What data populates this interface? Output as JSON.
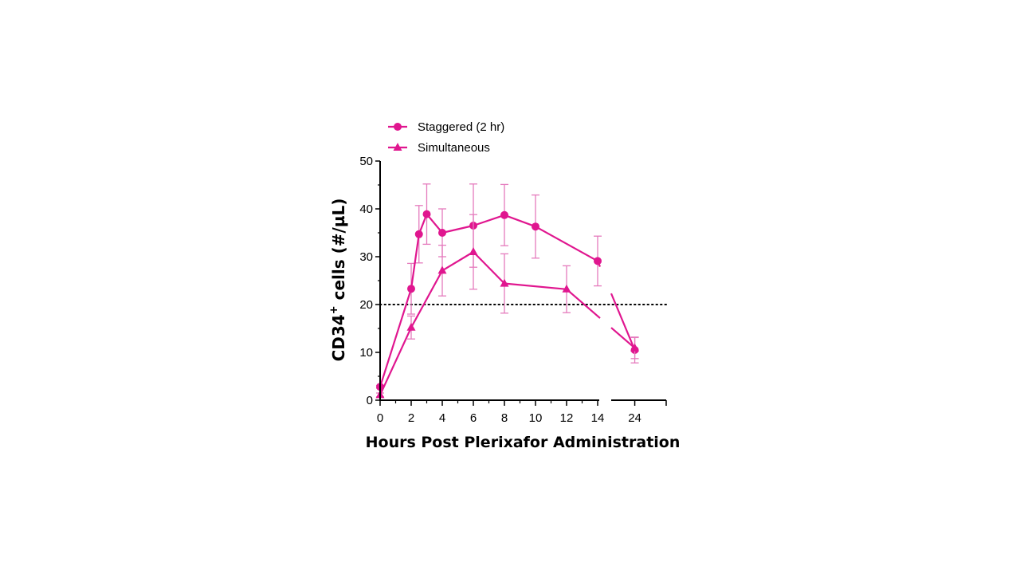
{
  "chart_data": {
    "type": "line",
    "title": "",
    "xlabel": "Hours Post Plerixafor Administration",
    "ylabel": "CD34",
    "ylabel_superscript": "+",
    "ylabel_suffix": " cells (#/µL)",
    "xlim_segments": [
      [
        0,
        14
      ],
      [
        22.5,
        26
      ]
    ],
    "ylim": [
      0,
      50
    ],
    "y_ticks": [
      0,
      10,
      20,
      30,
      40,
      50
    ],
    "x_tick_labels": [
      "0",
      "2",
      "4",
      "6",
      "8",
      "10",
      "12",
      "14",
      "24"
    ],
    "x_tick_values": [
      0,
      2,
      4,
      6,
      8,
      10,
      12,
      14,
      24
    ],
    "reference_line": {
      "y": 20,
      "style": "dotted"
    },
    "grid": false,
    "legend_position": "top-left",
    "color": "#e0168f",
    "series": [
      {
        "name": "Staggered (2 hr)",
        "marker": "circle",
        "x": [
          0,
          2,
          2.5,
          3,
          4,
          6,
          8,
          10,
          14,
          24
        ],
        "y": [
          2.8,
          23.3,
          34.7,
          38.9,
          35.0,
          36.5,
          38.7,
          36.3,
          29.1,
          10.5
        ],
        "err": [
          0.3,
          5.3,
          6.0,
          6.3,
          5.0,
          8.7,
          6.4,
          6.6,
          5.2,
          2.7
        ]
      },
      {
        "name": "Simultaneous",
        "marker": "triangle",
        "x": [
          0,
          2,
          4,
          6,
          8,
          12,
          24
        ],
        "y": [
          1.1,
          15.2,
          27.1,
          31.0,
          24.4,
          23.2,
          10.9
        ],
        "err": [
          0.4,
          2.4,
          5.3,
          7.8,
          6.2,
          4.9,
          2.2
        ]
      }
    ]
  }
}
